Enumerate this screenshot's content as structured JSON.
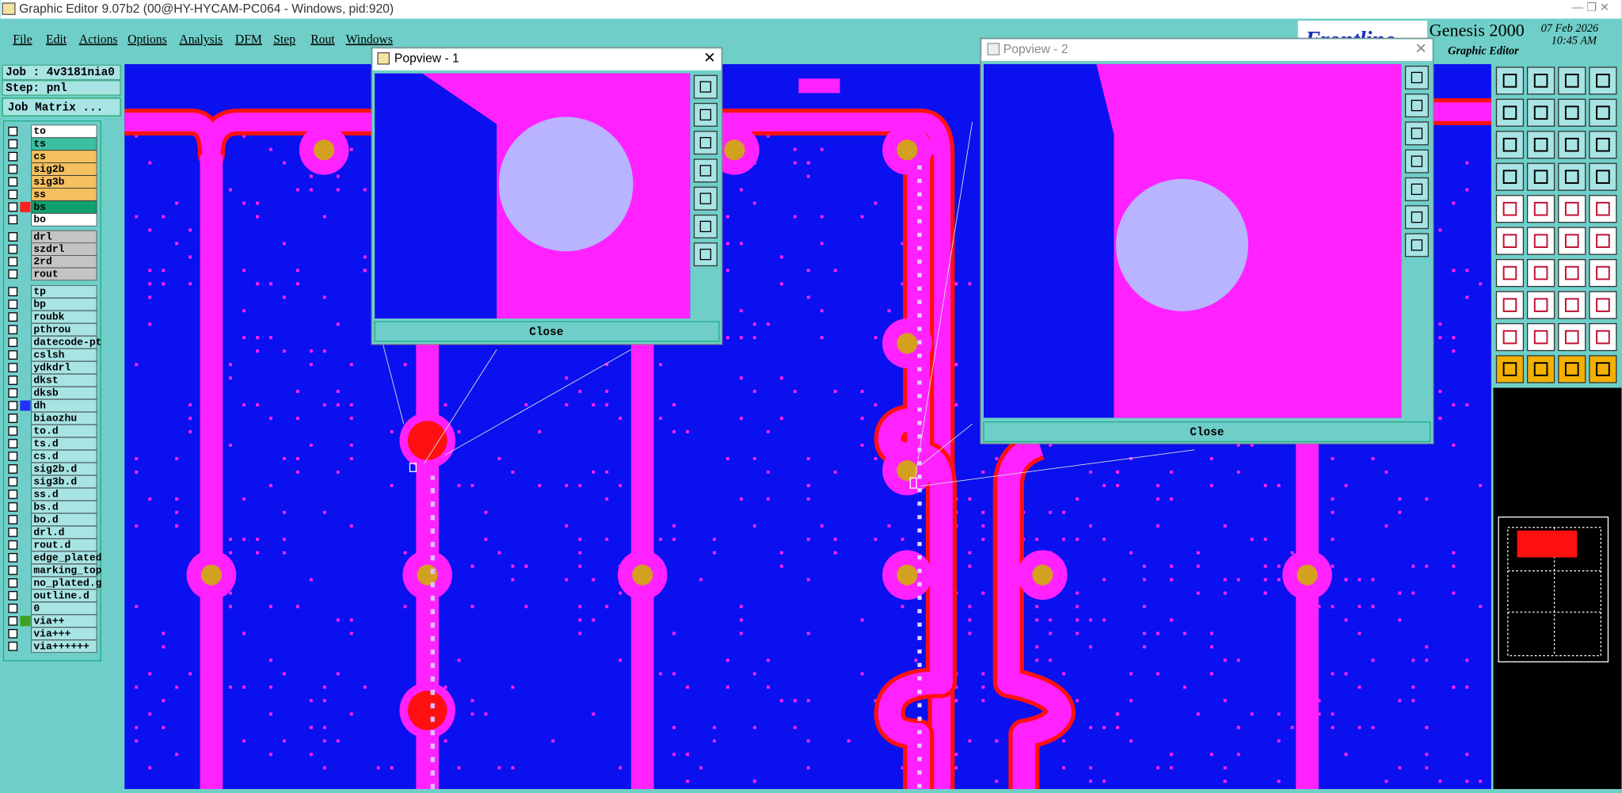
{
  "window_title": "Graphic Editor 9.07b2 (00@HY-HYCAM-PC064 - Windows, pid:920)",
  "menu": [
    "File",
    "Edit",
    "Actions",
    "Options",
    "Analysis",
    "DFM",
    "Step",
    "Rout",
    "Windows"
  ],
  "header": {
    "product": "Genesis 2000",
    "date": "07 Feb 2026",
    "time": "10:45 AM",
    "subtitle": "Graphic Editor"
  },
  "job_panel": {
    "job": "Job : 4v3181nia0",
    "step": "Step: pnl",
    "matrix_button": "Job Matrix ..."
  },
  "layers": [
    {
      "name": "to",
      "color": "#ffffff"
    },
    {
      "name": "ts",
      "color": "#3cc0a0"
    },
    {
      "name": "cs",
      "color": "#f4c060"
    },
    {
      "name": "sig2b",
      "color": "#f4c060"
    },
    {
      "name": "sig3b",
      "color": "#f4c060"
    },
    {
      "name": "ss",
      "color": "#f4c060"
    },
    {
      "name": "bs",
      "color": "#10a070",
      "marker": "#ff2020"
    },
    {
      "name": "bo",
      "color": "#ffffff"
    },
    {
      "name": "drl",
      "color": "#c4c4c4"
    },
    {
      "name": "szdrl",
      "color": "#c4c4c4"
    },
    {
      "name": "2rd",
      "color": "#c4c4c4"
    },
    {
      "name": "rout",
      "color": "#c4c4c4"
    },
    {
      "name": "tp",
      "color": "#a8e4e4"
    },
    {
      "name": "bp",
      "color": "#a8e4e4"
    },
    {
      "name": "roubk",
      "color": "#a8e4e4"
    },
    {
      "name": "pthrou",
      "color": "#a8e4e4"
    },
    {
      "name": "datecode-pt",
      "color": "#a8e4e4"
    },
    {
      "name": "cslsh",
      "color": "#a8e4e4"
    },
    {
      "name": "ydkdrl",
      "color": "#a8e4e4"
    },
    {
      "name": "dkst",
      "color": "#a8e4e4"
    },
    {
      "name": "dksb",
      "color": "#a8e4e4"
    },
    {
      "name": "dh",
      "color": "#a8e4e4",
      "marker": "#2030ff"
    },
    {
      "name": "biaozhu",
      "color": "#a8e4e4"
    },
    {
      "name": "to.d",
      "color": "#a8e4e4"
    },
    {
      "name": "ts.d",
      "color": "#a8e4e4"
    },
    {
      "name": "cs.d",
      "color": "#a8e4e4"
    },
    {
      "name": "sig2b.d",
      "color": "#a8e4e4"
    },
    {
      "name": "sig3b.d",
      "color": "#a8e4e4"
    },
    {
      "name": "ss.d",
      "color": "#a8e4e4"
    },
    {
      "name": "bs.d",
      "color": "#a8e4e4"
    },
    {
      "name": "bo.d",
      "color": "#a8e4e4"
    },
    {
      "name": "drl.d",
      "color": "#a8e4e4"
    },
    {
      "name": "rout.d",
      "color": "#a8e4e4"
    },
    {
      "name": "edge_plated",
      "color": "#a8e4e4"
    },
    {
      "name": "marking_top",
      "color": "#a8e4e4"
    },
    {
      "name": "no_plated.g",
      "color": "#a8e4e4"
    },
    {
      "name": "outline.d",
      "color": "#a8e4e4"
    },
    {
      "name": "0",
      "color": "#a8e4e4"
    },
    {
      "name": "via++",
      "color": "#a8e4e4",
      "marker": "#40a020"
    },
    {
      "name": "via+++",
      "color": "#a8e4e4"
    },
    {
      "name": "via++++++",
      "color": "#a8e4e4"
    }
  ],
  "popviews": [
    {
      "title": "Popview - 1",
      "close": "Close"
    },
    {
      "title": "Popview - 2",
      "close": "Close"
    }
  ]
}
